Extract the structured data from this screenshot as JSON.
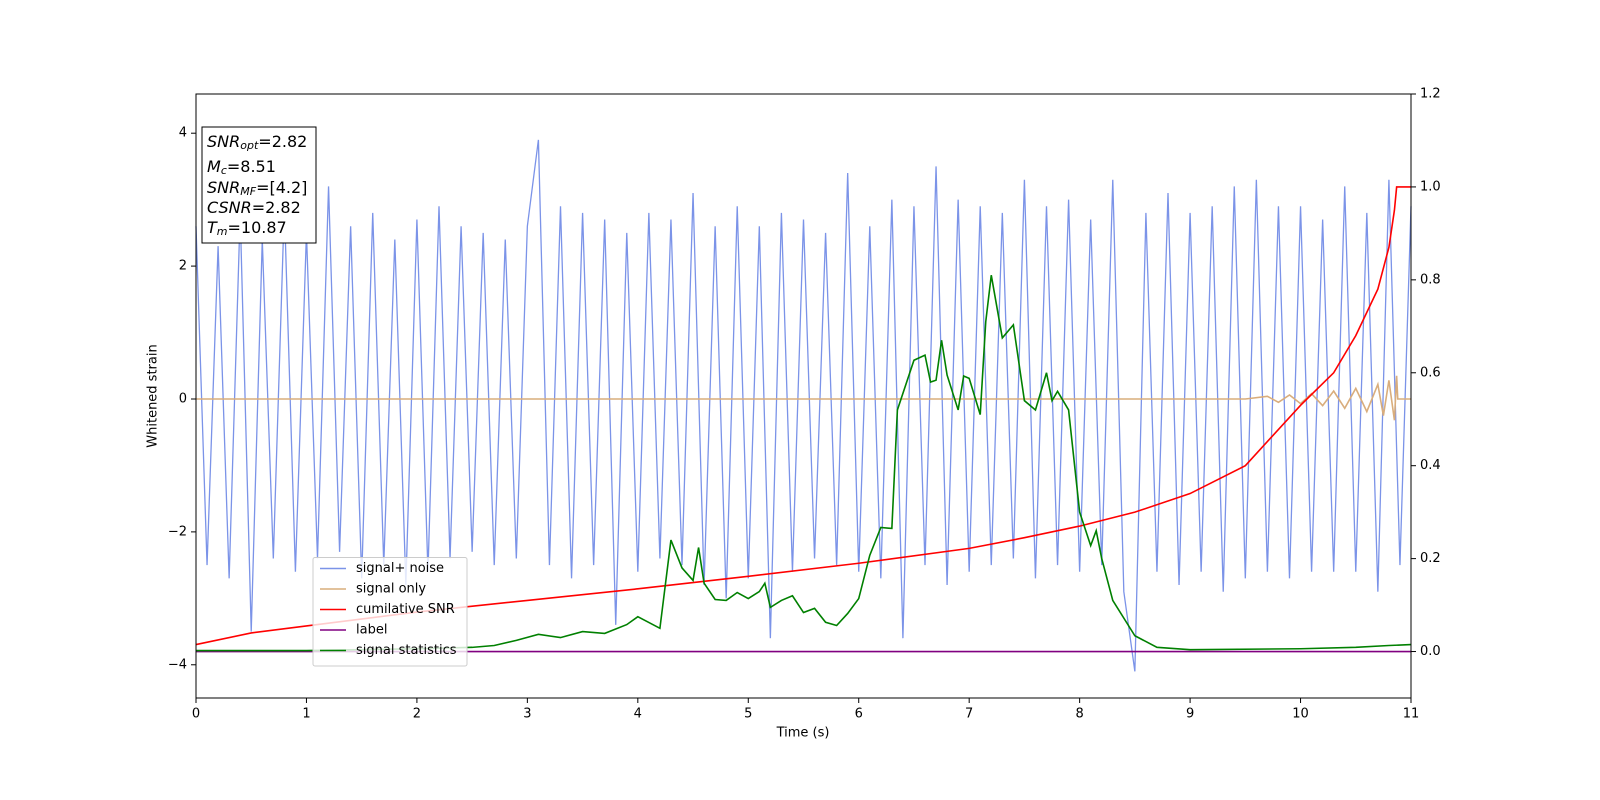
{
  "chart_data": {
    "type": "line",
    "x_label": "Time (s)",
    "y_label": "Whitened strain",
    "xlim": [
      0,
      11
    ],
    "ylim": [
      -4.5,
      4.59
    ],
    "y2lim": [
      -0.1,
      1.2
    ],
    "xticks": [
      0,
      1,
      2,
      3,
      4,
      5,
      6,
      7,
      8,
      9,
      10,
      11
    ],
    "yticks": [
      {
        "value": -4,
        "label": "−4"
      },
      {
        "value": -2,
        "label": "−2"
      },
      0,
      2,
      4
    ],
    "y2ticks": [
      {
        "value": 0,
        "label": "0.0"
      },
      {
        "value": 0.2,
        "label": "0.2"
      },
      {
        "value": 0.4,
        "label": "0.4"
      },
      {
        "value": 0.6,
        "label": "0.6"
      },
      {
        "value": 0.8,
        "label": "0.8"
      },
      {
        "value": 1,
        "label": "1.0"
      },
      {
        "value": 1.2,
        "label": "1.2"
      }
    ],
    "legend": "lower left",
    "annotation": [
      {
        "symbol": "SNR",
        "subscript": "opt",
        "text": "=2.82"
      },
      {
        "symbol": "M",
        "subscript": "c",
        "text": "=8.51"
      },
      {
        "symbol": "SNR",
        "subscript": "MF",
        "text": "=[4.2]"
      },
      {
        "symbol": "CSNR",
        "text": "=2.82"
      },
      {
        "symbol": "T",
        "subscript": "m",
        "text": "=10.87"
      }
    ],
    "series": [
      {
        "name": "signal+ noise",
        "color": "#7b93e8",
        "x": [
          0,
          0.1,
          0.2,
          0.3,
          0.4,
          0.5,
          0.6,
          0.7,
          0.8,
          0.9,
          1,
          1.1,
          1.2,
          1.3,
          1.4,
          1.5,
          1.6,
          1.7,
          1.8,
          1.9,
          2,
          2.1,
          2.2,
          2.3,
          2.4,
          2.5,
          2.6,
          2.7,
          2.8,
          2.9,
          3,
          3.1,
          3.2,
          3.3,
          3.4,
          3.5,
          3.6,
          3.7,
          3.8,
          3.9,
          4,
          4.1,
          4.2,
          4.3,
          4.4,
          4.5,
          4.6,
          4.7,
          4.8,
          4.9,
          5,
          5.1,
          5.2,
          5.3,
          5.4,
          5.5,
          5.6,
          5.7,
          5.8,
          5.9,
          6,
          6.1,
          6.2,
          6.3,
          6.4,
          6.5,
          6.6,
          6.7,
          6.8,
          6.9,
          7,
          7.1,
          7.2,
          7.3,
          7.4,
          7.5,
          7.6,
          7.7,
          7.8,
          7.9,
          8,
          8.1,
          8.2,
          8.3,
          8.4,
          8.5,
          8.6,
          8.7,
          8.8,
          8.9,
          9,
          9.1,
          9.2,
          9.3,
          9.4,
          9.5,
          9.6,
          9.7,
          9.8,
          9.9,
          10,
          10.1,
          10.2,
          10.3,
          10.4,
          10.5,
          10.6,
          10.7,
          10.8,
          10.9,
          11
        ],
        "values": [
          2.6,
          -2.5,
          2.3,
          -2.7,
          2.8,
          -3.5,
          2.4,
          -2.4,
          2.9,
          -2.6,
          2.5,
          -2.4,
          3.2,
          -2.3,
          2.6,
          -2.7,
          2.8,
          -2.5,
          2.4,
          -2.8,
          2.7,
          -2.6,
          2.9,
          -2.4,
          2.6,
          -2.3,
          2.5,
          -2.5,
          2.4,
          -2.4,
          2.6,
          3.9,
          -2.5,
          2.9,
          -2.7,
          2.8,
          -2.5,
          2.7,
          -3.4,
          2.5,
          -2.6,
          2.8,
          -2.4,
          2.7,
          -2.5,
          3.1,
          -2.8,
          2.6,
          -3.0,
          2.9,
          -2.7,
          2.6,
          -3.6,
          2.8,
          -2.6,
          2.7,
          -2.4,
          2.5,
          -2.5,
          3.4,
          -2.6,
          2.6,
          -2.7,
          3.0,
          -3.6,
          2.9,
          -2.5,
          3.5,
          -2.8,
          3.0,
          -2.6,
          2.9,
          -2.5,
          2.8,
          -2.4,
          3.3,
          -2.7,
          2.9,
          -2.5,
          3.0,
          -2.6,
          2.7,
          -2.5,
          3.3,
          -2.9,
          -4.1,
          2.8,
          -2.6,
          3.1,
          -2.8,
          2.8,
          -2.6,
          2.9,
          -2.9,
          3.2,
          -2.7,
          3.3,
          -2.6,
          2.9,
          -2.7,
          2.9,
          -2.6,
          2.7,
          -2.6,
          3.2,
          -2.6,
          2.8,
          -2.9,
          3.3,
          -2.5,
          2.9
        ]
      },
      {
        "name": "signal only",
        "color": "#d9ad7c",
        "x": [
          0,
          9.5,
          9.7,
          9.8,
          9.9,
          10,
          10.1,
          10.2,
          10.3,
          10.4,
          10.5,
          10.6,
          10.7,
          10.75,
          10.8,
          10.85,
          10.87,
          10.88,
          11
        ],
        "values": [
          0,
          0,
          0.04,
          -0.05,
          0.06,
          -0.07,
          0.08,
          -0.1,
          0.12,
          -0.14,
          0.16,
          -0.19,
          0.22,
          -0.25,
          0.28,
          -0.32,
          0.35,
          0,
          0
        ]
      },
      {
        "name": "cumilative SNR",
        "color": "#ff0000",
        "axis": "y2",
        "x": [
          0,
          0.5,
          1,
          2,
          3,
          4,
          5,
          6,
          7,
          7.5,
          8,
          8.5,
          9,
          9.5,
          10,
          10.3,
          10.5,
          10.7,
          10.8,
          10.85,
          10.87,
          11
        ],
        "values": [
          0.015,
          0.04,
          0.055,
          0.085,
          0.11,
          0.135,
          0.162,
          0.19,
          0.222,
          0.245,
          0.27,
          0.3,
          0.34,
          0.4,
          0.53,
          0.6,
          0.68,
          0.78,
          0.87,
          0.95,
          1,
          1
        ]
      },
      {
        "name": "label",
        "color": "#800080",
        "axis": "y2",
        "x": [
          0,
          11
        ],
        "values": [
          0,
          0
        ]
      },
      {
        "name": "signal statistics",
        "color": "#008000",
        "axis": "y2",
        "x": [
          0,
          1,
          2,
          2.5,
          2.7,
          2.9,
          3.1,
          3.3,
          3.5,
          3.7,
          3.9,
          4,
          4.2,
          4.3,
          4.4,
          4.5,
          4.55,
          4.6,
          4.7,
          4.8,
          4.9,
          5,
          5.1,
          5.15,
          5.2,
          5.3,
          5.4,
          5.5,
          5.6,
          5.7,
          5.8,
          5.9,
          6,
          6.1,
          6.2,
          6.3,
          6.35,
          6.5,
          6.6,
          6.65,
          6.7,
          6.75,
          6.8,
          6.9,
          6.95,
          7,
          7.1,
          7.15,
          7.2,
          7.3,
          7.4,
          7.5,
          7.6,
          7.7,
          7.75,
          7.8,
          7.9,
          8,
          8.1,
          8.15,
          8.2,
          8.3,
          8.5,
          8.7,
          9,
          10,
          10.5,
          10.8,
          11
        ],
        "values": [
          0.002,
          0.002,
          0.006,
          0.009,
          0.013,
          0.024,
          0.037,
          0.03,
          0.043,
          0.039,
          0.058,
          0.075,
          0.05,
          0.24,
          0.18,
          0.153,
          0.224,
          0.147,
          0.112,
          0.11,
          0.127,
          0.114,
          0.129,
          0.147,
          0.095,
          0.11,
          0.12,
          0.084,
          0.093,
          0.063,
          0.056,
          0.082,
          0.114,
          0.207,
          0.267,
          0.265,
          0.52,
          0.627,
          0.638,
          0.58,
          0.584,
          0.67,
          0.595,
          0.52,
          0.593,
          0.588,
          0.51,
          0.71,
          0.81,
          0.675,
          0.703,
          0.54,
          0.52,
          0.6,
          0.54,
          0.56,
          0.52,
          0.3,
          0.228,
          0.26,
          0.2,
          0.11,
          0.034,
          0.009,
          0.004,
          0.006,
          0.009,
          0.013,
          0.015
        ]
      }
    ]
  }
}
